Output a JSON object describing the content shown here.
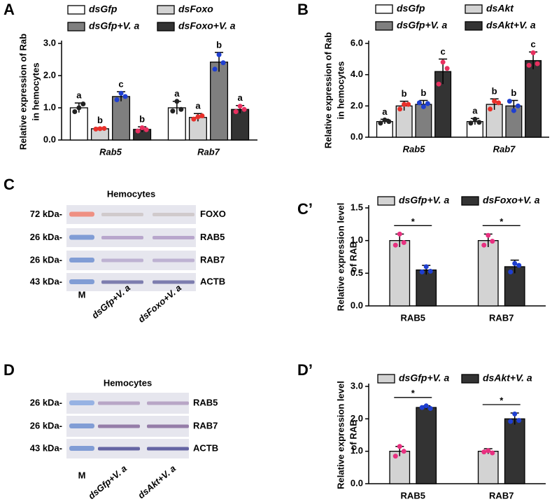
{
  "chart_data": [
    {
      "type": "bar",
      "panel_label": "A",
      "ylabel": [
        "Relative expression of Rab",
        "in hemocytes"
      ],
      "categories": [
        "Rab5",
        "Rab7"
      ],
      "ylim": [
        0,
        3
      ],
      "yticks": [
        {
          "value": 0,
          "label": "0.0"
        },
        {
          "value": 1,
          "label": "1.0"
        },
        {
          "value": 2,
          "label": "2.0"
        },
        {
          "value": 3,
          "label": "3.0"
        }
      ],
      "series": [
        {
          "name": "dsGfp",
          "color": "#ffffff",
          "point_color": "#222222",
          "values": [
            1.0,
            1.0
          ],
          "errors": [
            0.15,
            0.2
          ],
          "letters": [
            "a",
            "a"
          ],
          "points": [
            [
              0.88,
              1.0,
              1.12
            ],
            [
              0.9,
              1.2,
              0.95
            ]
          ]
        },
        {
          "name": "dsFoxo",
          "color": "#d3d3d3",
          "point_color": "#e8302a",
          "values": [
            0.35,
            0.7
          ],
          "errors": [
            0.03,
            0.12
          ],
          "letters": [
            "b",
            "a"
          ],
          "points": [
            [
              0.34,
              0.35,
              0.36
            ],
            [
              0.65,
              0.72,
              0.75
            ]
          ]
        },
        {
          "name": "dsGfp+V. a",
          "color": "#7f7f7f",
          "point_color": "#1f3fd0",
          "values": [
            1.35,
            2.42
          ],
          "errors": [
            0.15,
            0.3
          ],
          "letters": [
            "c",
            "b"
          ],
          "points": [
            [
              1.25,
              1.45,
              1.35
            ],
            [
              2.2,
              2.65,
              2.4
            ]
          ]
        },
        {
          "name": "dsFoxo+V. a",
          "color": "#333333",
          "point_color": "#e83060",
          "values": [
            0.33,
            0.95
          ],
          "errors": [
            0.08,
            0.12
          ],
          "letters": [
            "b",
            "a"
          ],
          "points": [
            [
              0.28,
              0.38,
              0.32
            ],
            [
              0.88,
              1.05,
              0.95
            ]
          ]
        }
      ]
    },
    {
      "type": "bar",
      "panel_label": "B",
      "ylabel": [
        "Relative expression of Rab",
        "in hemocytes"
      ],
      "categories": [
        "Rab5",
        "Rab7"
      ],
      "ylim": [
        0,
        6
      ],
      "yticks": [
        {
          "value": 0,
          "label": "0.0"
        },
        {
          "value": 2,
          "label": "2.0"
        },
        {
          "value": 4,
          "label": "4.0"
        },
        {
          "value": 6,
          "label": "6.0"
        }
      ],
      "series": [
        {
          "name": "dsGfp",
          "color": "#ffffff",
          "point_color": "#222222",
          "values": [
            1.0,
            1.0
          ],
          "errors": [
            0.15,
            0.2
          ],
          "letters": [
            "a",
            "a"
          ],
          "points": [
            [
              0.9,
              1.1,
              1.0
            ],
            [
              0.9,
              1.15,
              0.95
            ]
          ]
        },
        {
          "name": "dsAkt",
          "color": "#d3d3d3",
          "point_color": "#e8302a",
          "values": [
            2.0,
            2.1
          ],
          "errors": [
            0.3,
            0.35
          ],
          "letters": [
            "b",
            "b"
          ],
          "points": [
            [
              1.8,
              2.1,
              2.1
            ],
            [
              1.8,
              2.3,
              2.2
            ]
          ]
        },
        {
          "name": "dsGfp+V. a",
          "color": "#7f7f7f",
          "point_color": "#1f3fd0",
          "values": [
            2.1,
            2.0
          ],
          "errors": [
            0.25,
            0.35
          ],
          "letters": [
            "b",
            "b"
          ],
          "points": [
            [
              2.2,
              1.95,
              2.15
            ],
            [
              2.3,
              1.7,
              2.0
            ]
          ]
        },
        {
          "name": "dsAkt+V. a",
          "color": "#333333",
          "point_color": "#e83060",
          "values": [
            4.2,
            4.9
          ],
          "errors": [
            0.8,
            0.55
          ],
          "letters": [
            "c",
            "c"
          ],
          "points": [
            [
              3.4,
              4.8,
              4.4
            ],
            [
              4.6,
              5.4,
              4.7
            ]
          ]
        }
      ]
    },
    {
      "type": "bar",
      "panel_label": "C’",
      "ylabel": [
        "Relative expression level",
        "of RAB"
      ],
      "categories": [
        "RAB5",
        "RAB7"
      ],
      "ylim": [
        0,
        1.5
      ],
      "yticks": [
        {
          "value": 0,
          "label": "0.0"
        },
        0.5,
        {
          "value": 1,
          "label": "1.0"
        },
        1.5
      ],
      "significance": [
        "*",
        "*"
      ],
      "series": [
        {
          "name": "dsGfp+V. a",
          "color": "#d3d3d3",
          "point_color": "#e83080",
          "values": [
            1.0,
            1.0
          ],
          "errors": [
            0.1,
            0.1
          ],
          "points": [
            [
              0.93,
              1.1,
              0.97
            ],
            [
              0.93,
              1.08,
              0.99
            ]
          ]
        },
        {
          "name": "dsFoxo+V. a",
          "color": "#333333",
          "point_color": "#1f3fd0",
          "values": [
            0.55,
            0.6
          ],
          "errors": [
            0.07,
            0.1
          ],
          "points": [
            [
              0.52,
              0.6,
              0.53
            ],
            [
              0.52,
              0.65,
              0.62
            ]
          ]
        }
      ]
    },
    {
      "type": "bar",
      "panel_label": "D’",
      "ylabel": [
        "Relative expression level",
        "of RAB"
      ],
      "categories": [
        "RAB5",
        "RAB7"
      ],
      "ylim": [
        0,
        3
      ],
      "yticks": [
        {
          "value": 0,
          "label": "0.0"
        },
        {
          "value": 1,
          "label": "1.0"
        },
        {
          "value": 2,
          "label": "2.0"
        },
        {
          "value": 3,
          "label": "3.0"
        }
      ],
      "significance": [
        "*",
        "*"
      ],
      "series": [
        {
          "name": "dsGfp+V. a",
          "color": "#d3d3d3",
          "point_color": "#e83080",
          "values": [
            1.0,
            1.0
          ],
          "errors": [
            0.15,
            0.08
          ],
          "points": [
            [
              0.85,
              1.15,
              1.0
            ],
            [
              0.98,
              1.02,
              0.95
            ]
          ]
        },
        {
          "name": "dsAkt+V. a",
          "color": "#333333",
          "point_color": "#1f3fd0",
          "values": [
            2.35,
            2.0
          ],
          "errors": [
            0.05,
            0.18
          ],
          "points": [
            [
              2.35,
              2.4,
              2.32
            ],
            [
              1.92,
              2.15,
              1.95
            ]
          ]
        }
      ]
    }
  ],
  "blots": [
    {
      "panel_label": "C",
      "title": "Hemocytes",
      "rows": [
        "FOXO",
        "RAB5",
        "RAB7",
        "ACTB"
      ],
      "sizes": [
        "72 kDa-",
        "26 kDa-",
        "26 kDa-",
        "43 kDa-"
      ],
      "lanes": [
        "M",
        "dsGfp+V. a",
        "dsFoxo+V. a"
      ]
    },
    {
      "panel_label": "D",
      "title": "Hemocytes",
      "rows": [
        "RAB5",
        "RAB7",
        "ACTB"
      ],
      "sizes": [
        "26 kDa-",
        "26 kDa-",
        "43 kDa-"
      ],
      "lanes": [
        "M",
        "dsGfp+V. a",
        "dsAkt+V. a"
      ]
    }
  ]
}
